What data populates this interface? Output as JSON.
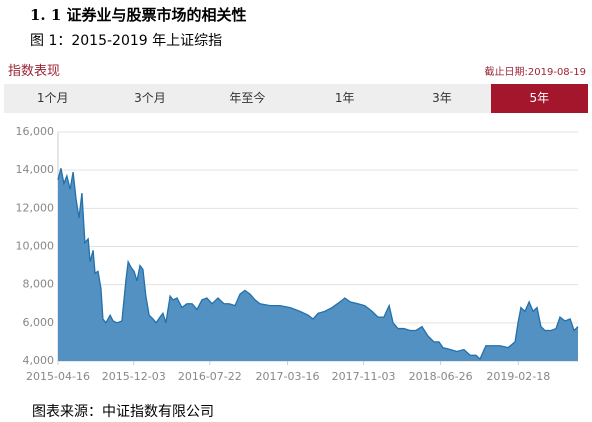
{
  "heading": "1. 1 证券业与股票市场的相关性",
  "figure_caption": "图 1：2015-2019 年上证综指",
  "panel": {
    "title": "指数表现",
    "as_of": "截止日期:2019-08-19",
    "tabs": [
      {
        "label": "1个月",
        "active": false
      },
      {
        "label": "3个月",
        "active": false
      },
      {
        "label": "年至今",
        "active": false
      },
      {
        "label": "1年",
        "active": false
      },
      {
        "label": "3年",
        "active": false
      },
      {
        "label": "5年",
        "active": true
      }
    ]
  },
  "chart_data": {
    "type": "area",
    "x": [
      "2015-04-16",
      "2015-04-25",
      "2015-05-04",
      "2015-05-13",
      "2015-05-23",
      "2015-06-01",
      "2015-06-10",
      "2015-06-19",
      "2015-06-28",
      "2015-07-07",
      "2015-07-17",
      "2015-07-23",
      "2015-08-01",
      "2015-08-07",
      "2015-08-16",
      "2015-08-25",
      "2015-08-31",
      "2015-09-09",
      "2015-09-22",
      "2015-10-01",
      "2015-10-13",
      "2015-10-28",
      "2015-11-09",
      "2015-11-16",
      "2015-11-25",
      "2015-12-04",
      "2015-12-13",
      "2015-12-22",
      "2015-12-31",
      "2016-01-09",
      "2016-01-19",
      "2016-01-31",
      "2016-02-09",
      "2016-02-21",
      "2016-03-01",
      "2016-03-10",
      "2016-03-23",
      "2016-04-01",
      "2016-04-13",
      "2016-04-28",
      "2016-05-13",
      "2016-05-29",
      "2016-06-13",
      "2016-06-28",
      "2016-07-13",
      "2016-07-29",
      "2016-08-16",
      "2016-09-03",
      "2016-09-19",
      "2016-10-07",
      "2016-10-22",
      "2016-11-06",
      "2016-11-22",
      "2016-12-07",
      "2016-12-22",
      "2017-01-22",
      "2017-02-21",
      "2017-03-24",
      "2017-04-23",
      "2017-05-18",
      "2017-06-02",
      "2017-06-17",
      "2017-07-08",
      "2017-07-30",
      "2017-08-23",
      "2017-09-07",
      "2017-09-23",
      "2017-10-17",
      "2017-11-07",
      "2017-11-29",
      "2017-12-17",
      "2018-01-04",
      "2018-01-20",
      "2018-02-01",
      "2018-02-16",
      "2018-03-06",
      "2018-03-25",
      "2018-04-12",
      "2018-04-30",
      "2018-05-19",
      "2018-06-06",
      "2018-06-21",
      "2018-07-03",
      "2018-07-25",
      "2018-08-15",
      "2018-09-05",
      "2018-09-24",
      "2018-10-12",
      "2018-10-24",
      "2018-11-11",
      "2018-12-03",
      "2018-12-24",
      "2019-01-18",
      "2019-02-08",
      "2019-02-17",
      "2019-02-26",
      "2019-03-10",
      "2019-03-23",
      "2019-04-04",
      "2019-04-16",
      "2019-04-28",
      "2019-05-10",
      "2019-05-29",
      "2019-06-13",
      "2019-06-25",
      "2019-07-10",
      "2019-07-26",
      "2019-08-07",
      "2019-08-19"
    ],
    "series": [
      {
        "color": "#2370ab",
        "area_color": "#5291c2",
        "values": [
          13500,
          14100,
          13300,
          13700,
          13000,
          13900,
          12500,
          11500,
          12800,
          10200,
          10400,
          9200,
          9800,
          8600,
          8700,
          7800,
          6200,
          6000,
          6400,
          6100,
          6000,
          6100,
          8200,
          9200,
          8900,
          8700,
          8200,
          9000,
          8800,
          7400,
          6400,
          6200,
          6000,
          6300,
          6500,
          6000,
          7400,
          7200,
          7300,
          6800,
          7000,
          7000,
          6700,
          7200,
          7300,
          7000,
          7300,
          7000,
          7000,
          6900,
          7500,
          7700,
          7500,
          7200,
          7000,
          6900,
          6900,
          6800,
          6600,
          6400,
          6200,
          6500,
          6600,
          6800,
          7100,
          7300,
          7100,
          7000,
          6900,
          6600,
          6300,
          6300,
          6900,
          6000,
          5700,
          5700,
          5600,
          5600,
          5800,
          5300,
          5000,
          5000,
          4700,
          4600,
          4500,
          4600,
          4300,
          4300,
          4100,
          4800,
          4800,
          4800,
          4700,
          5000,
          6000,
          6800,
          6600,
          7100,
          6600,
          6800,
          5800,
          5600,
          5600,
          5700,
          6300,
          6100,
          6200,
          5600,
          5800
        ]
      }
    ],
    "xlim": [
      "2015-04-16",
      "2019-08-19"
    ],
    "xticks": [
      "2015-04-16",
      "2015-12-03",
      "2016-07-22",
      "2017-03-16",
      "2017-11-03",
      "2018-06-26",
      "2019-02-18"
    ],
    "ylim": [
      4000,
      16000
    ],
    "yticks": [
      {
        "value": 4000,
        "label": "4,000"
      },
      {
        "value": 6000,
        "label": "6,000"
      },
      {
        "value": 8000,
        "label": "8,000"
      },
      {
        "value": 10000,
        "label": "10,000"
      },
      {
        "value": 12000,
        "label": "12,000"
      },
      {
        "value": 14000,
        "label": "14,000"
      },
      {
        "value": 16000,
        "label": "16,000"
      }
    ],
    "grid": true
  },
  "source": "图表来源：中证指数有限公司"
}
